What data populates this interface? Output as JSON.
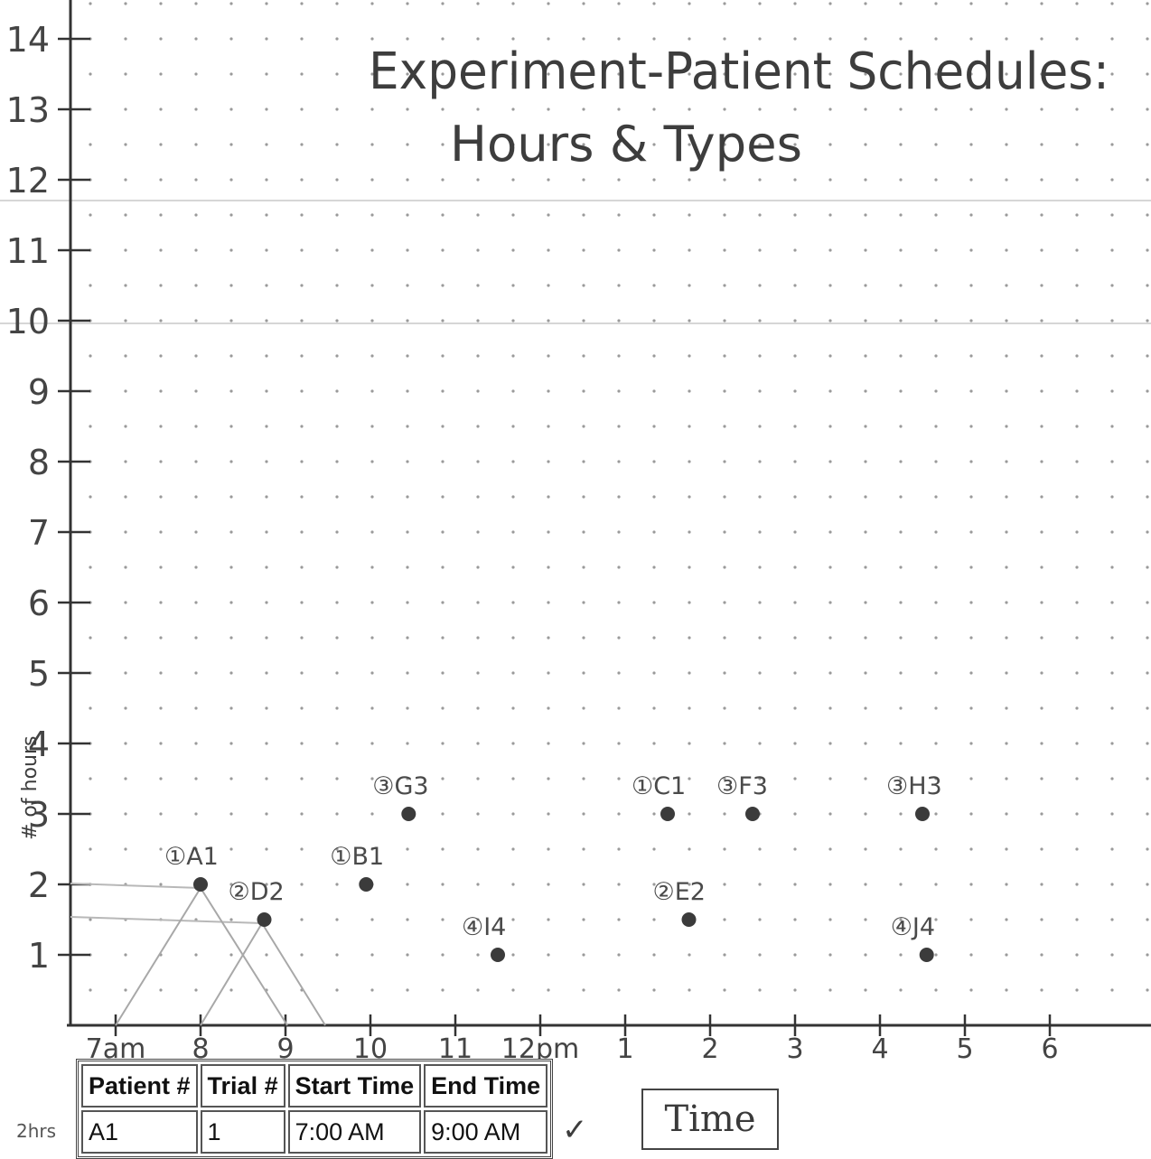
{
  "page": {
    "title_line1": "Experiment-Patient Schedules:",
    "title_line2": "Hours & Types",
    "x_axis_label": "Time",
    "y_axis_label": "# of hours",
    "side_note": "2hrs",
    "check_mark": "✓"
  },
  "chart_data": {
    "type": "scatter",
    "title": "Experiment-Patient Schedules: Hours & Types",
    "xlabel": "Time",
    "ylabel": "# of hours",
    "xlim": [
      6.9,
      19.2
    ],
    "ylim": [
      0,
      14.5
    ],
    "x_ticks": [
      7,
      8,
      9,
      10,
      11,
      12,
      13,
      14,
      15,
      16,
      17,
      18
    ],
    "x_tick_labels": [
      "7am",
      "8",
      "9",
      "10",
      "11",
      "12pm",
      "1",
      "2",
      "3",
      "4",
      "5",
      "6"
    ],
    "y_ticks": [
      1,
      2,
      3,
      4,
      5,
      6,
      7,
      8,
      9,
      10,
      11,
      12,
      13,
      14
    ],
    "y_tick_labels": [
      "1",
      "2",
      "3",
      "4",
      "5",
      "6",
      "7",
      "8",
      "9",
      "10",
      "11",
      "12",
      "13",
      "14"
    ],
    "grid": "dots",
    "points": [
      {
        "label": "①A1",
        "x": 8.0,
        "y": 2.0
      },
      {
        "label": "②D2",
        "x": 8.75,
        "y": 1.5
      },
      {
        "label": "①B1",
        "x": 9.95,
        "y": 2.0
      },
      {
        "label": "③G3",
        "x": 10.45,
        "y": 3.0
      },
      {
        "label": "④I4",
        "x": 11.5,
        "y": 1.0
      },
      {
        "label": "①C1",
        "x": 13.5,
        "y": 3.0
      },
      {
        "label": "②E2",
        "x": 13.75,
        "y": 1.5
      },
      {
        "label": "③F3",
        "x": 14.5,
        "y": 3.0
      },
      {
        "label": "③H3",
        "x": 16.5,
        "y": 3.0
      },
      {
        "label": "④J4",
        "x": 16.55,
        "y": 1.0
      }
    ],
    "table": {
      "columns": [
        "Patient #",
        "Trial #",
        "Start Time",
        "End Time"
      ],
      "rows": [
        [
          "A1",
          "1",
          "7:00 AM",
          "9:00 AM"
        ]
      ]
    }
  }
}
